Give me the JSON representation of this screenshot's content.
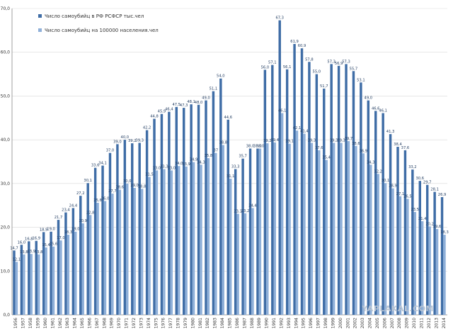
{
  "chart_data": {
    "type": "bar",
    "title": "",
    "xlabel": "",
    "ylabel": "",
    "ylim": [
      0,
      70
    ],
    "yticks": [
      "0,0",
      "10,0",
      "20,0",
      "30,0",
      "40,0",
      "50,0",
      "60,0",
      "70,0"
    ],
    "grid": true,
    "legend_position": "top-left",
    "categories": [
      "1956",
      "1957",
      "1958",
      "1959",
      "1960",
      "1961",
      "1962",
      "1963",
      "1964",
      "1965",
      "1966",
      "1967",
      "1968",
      "1969",
      "1970",
      "1971",
      "1972",
      "1973",
      "1974",
      "1975",
      "1976",
      "1977",
      "1978",
      "1979",
      "1980",
      "1981",
      "1982",
      "1983",
      "1984",
      "1985",
      "1986",
      "1987",
      "1988",
      "1989",
      "1990",
      "1991",
      "1992",
      "1993",
      "1994",
      "1995",
      "1996",
      "1997",
      "1998",
      "1999",
      "2000",
      "2001",
      "2002",
      "2003",
      "2004",
      "2005",
      "2006",
      "2007",
      "2008",
      "2009",
      "2010",
      "2011",
      "2012",
      "2013",
      "2014"
    ],
    "series": [
      {
        "name": "Число самоубийц в РФ РСФСР тыс.чел",
        "color": "#3f6da6",
        "values": [
          14.7,
          16.0,
          16.8,
          16.9,
          18.9,
          19.0,
          21.7,
          23.4,
          24.4,
          27.2,
          30.1,
          33.6,
          34.1,
          37.0,
          39.0,
          40.0,
          39.2,
          39.3,
          42.2,
          44.8,
          45.9,
          46.4,
          47.5,
          47.3,
          48.1,
          48.0,
          49.0,
          51.1,
          54.0,
          44.6,
          33.3,
          35.7,
          38.0,
          38.0,
          56.0,
          57.1,
          67.3,
          56.1,
          61.9,
          60.9,
          57.8,
          55.0,
          51.7,
          57.3,
          56.9,
          57.3,
          55.7,
          53.1,
          49.0,
          46.6,
          46.1,
          41.3,
          38.4,
          37.6,
          33.2,
          30.6,
          29.7,
          28.1,
          26.9
        ],
        "labels": [
          "14,7",
          "16,0",
          "16,8",
          "16,9",
          "18,9",
          "19,0",
          "21,7",
          "23,4",
          "24,4",
          "27,2",
          "30,1",
          "33,6",
          "34,1",
          "37,0",
          "39,0",
          "40,0",
          "39,2",
          "39,3",
          "42,2",
          "44,8",
          "45,9",
          "46,4",
          "47,5",
          "47,3",
          "48,1",
          "48,0",
          "49,0",
          "51,1",
          "54,0",
          "44,6",
          "33,3",
          "35,7",
          "38,0",
          "38,0",
          "56,0",
          "57,1",
          "67,3",
          "56,1",
          "61,9",
          "60,9",
          "57,8",
          "55,0",
          "51,7",
          "57,3",
          "56,9",
          "57,3",
          "55,7",
          "53,1",
          "49,0",
          "46,6",
          "46,1",
          "41,3",
          "38,4",
          "37,6",
          "33,2",
          "30,6",
          "29,7",
          "28,1",
          "26,9"
        ]
      },
      {
        "name": "Число самоубийц на 100000 населения.чел",
        "color": "#8fb0d9",
        "values": [
          12.1,
          13.8,
          13.9,
          13.8,
          15.4,
          15.6,
          17.0,
          18.3,
          19.0,
          20.9,
          22.8,
          25.6,
          26.0,
          27.7,
          28.6,
          30.0,
          29.0,
          28.8,
          31.5,
          33.0,
          33.3,
          33.0,
          34.0,
          33.9,
          34.9,
          34.3,
          35.8,
          37.0,
          38.8,
          31.1,
          23.1,
          23.2,
          24.4,
          38.0,
          39.2,
          39.4,
          46.1,
          39.1,
          42.1,
          41.4,
          39.3,
          37.6,
          35.4,
          39.3,
          39.3,
          39.7,
          38.6,
          36.9,
          34.3,
          32.2,
          30.1,
          28.9,
          27.1,
          26.5,
          23.5,
          21.4,
          20.2,
          19.6,
          18.3
        ],
        "labels": [
          "12,1",
          "13,8",
          "13,9",
          "13,8",
          "15,4",
          "15,6",
          "17,0",
          "18,3",
          "19,0",
          "20,9",
          "22,8",
          "25,6",
          "26,0",
          "27,7",
          "28,6",
          "30,0",
          "29,0",
          "28,8",
          "31,5",
          "33,0",
          "33,3",
          "33,0",
          "34,0",
          "33,9",
          "34,9",
          "34,3",
          "35,8",
          "37",
          "38,8",
          "31,1",
          "23,1",
          "23,2",
          "24,4",
          "38,0",
          "39,2",
          "39,4",
          "46,1",
          "39,1",
          "42,1",
          "41,4",
          "39,3",
          "37,6",
          "35,4",
          "39,3",
          "39,3",
          "39,7",
          "38,6",
          "36,9",
          "34,3",
          "32,2",
          "30,1",
          "28,9",
          "27,1",
          "26,5",
          "23,5",
          "21,4",
          "20,2",
          "19,6",
          "18,3"
        ]
      }
    ]
  },
  "watermark": "YAPLAKAL.COM"
}
